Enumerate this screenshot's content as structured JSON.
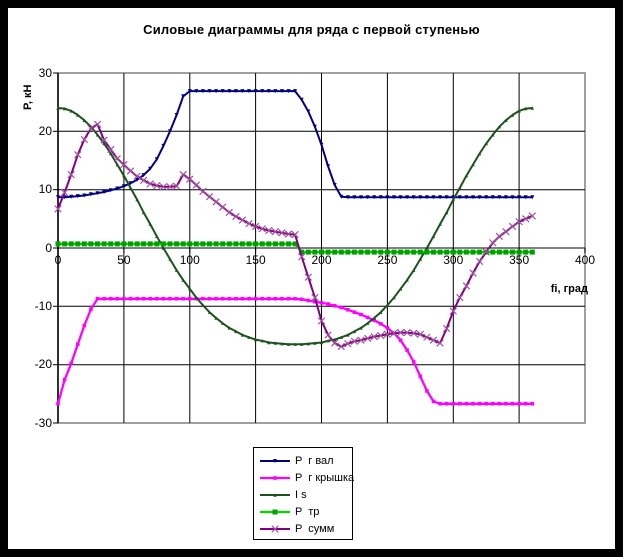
{
  "page": {
    "background": "#FFFFFF",
    "frame_color": "#000000",
    "plot_border_color": "#808080",
    "gridline_color": "#000000"
  },
  "chart_data": {
    "type": "line",
    "title": "Силовые диаграммы для ряда с первой ступенью",
    "xlabel": "fi, град",
    "ylabel": "P, кН",
    "xlim": [
      0,
      400
    ],
    "ylim": [
      -30,
      30
    ],
    "x_ticks": [
      0,
      50,
      100,
      150,
      200,
      250,
      300,
      350,
      400
    ],
    "y_ticks": [
      30,
      20,
      10,
      0,
      -10,
      -20,
      -30
    ],
    "grid": true,
    "legend_position": "bottom-center",
    "x": [
      0,
      5,
      10,
      15,
      20,
      25,
      30,
      35,
      40,
      45,
      50,
      55,
      60,
      65,
      70,
      75,
      80,
      85,
      90,
      95,
      100,
      105,
      110,
      115,
      120,
      125,
      130,
      135,
      140,
      145,
      150,
      155,
      160,
      165,
      170,
      175,
      180,
      185,
      190,
      195,
      200,
      205,
      210,
      215,
      220,
      225,
      230,
      235,
      240,
      245,
      250,
      255,
      260,
      265,
      270,
      275,
      280,
      285,
      290,
      295,
      300,
      305,
      310,
      315,
      320,
      325,
      330,
      335,
      340,
      345,
      350,
      355,
      360
    ],
    "series": [
      {
        "name": "P  г вал",
        "color": "#000080",
        "marker": "triangle-down",
        "marker_color": "#000080",
        "marker_size": 4,
        "line_width": 2,
        "values": [
          8.7,
          8.7,
          8.8,
          8.9,
          9.0,
          9.2,
          9.4,
          9.6,
          9.9,
          10.2,
          10.6,
          11.1,
          11.7,
          12.5,
          13.6,
          15.2,
          17.5,
          20.0,
          22.8,
          26.0,
          26.9,
          26.9,
          26.9,
          26.9,
          26.9,
          26.9,
          26.9,
          26.9,
          26.9,
          26.9,
          26.9,
          26.9,
          26.9,
          26.9,
          26.9,
          26.9,
          26.9,
          25.4,
          23.4,
          20.8,
          17.7,
          14.0,
          10.8,
          8.8,
          8.7,
          8.7,
          8.7,
          8.7,
          8.7,
          8.7,
          8.7,
          8.7,
          8.7,
          8.7,
          8.7,
          8.7,
          8.7,
          8.7,
          8.7,
          8.7,
          8.7,
          8.7,
          8.7,
          8.7,
          8.7,
          8.7,
          8.7,
          8.7,
          8.7,
          8.7,
          8.7,
          8.7,
          8.7
        ]
      },
      {
        "name": "P  г крышка",
        "color": "#FF00FF",
        "marker": "square",
        "marker_color": "#FF00FF",
        "marker_size": 3.6,
        "line_width": 2.3,
        "values": [
          -26.7,
          -22.6,
          -19.8,
          -16.5,
          -13.3,
          -10.5,
          -8.7,
          -8.7,
          -8.7,
          -8.7,
          -8.7,
          -8.7,
          -8.7,
          -8.7,
          -8.7,
          -8.7,
          -8.7,
          -8.7,
          -8.7,
          -8.7,
          -8.7,
          -8.7,
          -8.7,
          -8.7,
          -8.7,
          -8.7,
          -8.7,
          -8.7,
          -8.7,
          -8.7,
          -8.7,
          -8.7,
          -8.7,
          -8.7,
          -8.7,
          -8.7,
          -8.7,
          -8.8,
          -9.0,
          -9.2,
          -9.4,
          -9.6,
          -9.9,
          -10.2,
          -10.6,
          -11.0,
          -11.4,
          -11.9,
          -12.4,
          -13.0,
          -13.7,
          -14.6,
          -15.8,
          -17.5,
          -19.5,
          -22.0,
          -24.5,
          -26.3,
          -26.7,
          -26.7,
          -26.7,
          -26.7,
          -26.7,
          -26.7,
          -26.7,
          -26.7,
          -26.7,
          -26.7,
          -26.7,
          -26.7,
          -26.7,
          -26.7,
          -26.7
        ]
      },
      {
        "name": "I s",
        "color": "#1C521C",
        "marker": "triangle-up",
        "marker_color": "#1C521C",
        "marker_size": 3.4,
        "line_width": 2,
        "values": [
          24.0,
          23.9,
          23.5,
          22.8,
          21.9,
          20.8,
          19.4,
          17.9,
          16.2,
          14.3,
          12.4,
          10.3,
          8.3,
          6.1,
          4.1,
          2.0,
          0.0,
          -1.9,
          -3.8,
          -5.5,
          -7.0,
          -8.5,
          -9.8,
          -11.0,
          -12.0,
          -12.9,
          -13.7,
          -14.3,
          -14.9,
          -15.3,
          -15.7,
          -15.9,
          -16.2,
          -16.3,
          -16.4,
          -16.5,
          -16.5,
          -16.5,
          -16.4,
          -16.3,
          -16.2,
          -15.9,
          -15.7,
          -15.3,
          -14.9,
          -14.3,
          -13.7,
          -12.9,
          -12.0,
          -11.0,
          -9.8,
          -8.5,
          -7.0,
          -5.5,
          -3.8,
          -1.9,
          0.0,
          2.0,
          4.1,
          6.1,
          8.3,
          10.3,
          12.4,
          14.3,
          16.2,
          17.9,
          19.4,
          20.8,
          21.9,
          22.8,
          23.5,
          23.9,
          24.0
        ]
      },
      {
        "name": "P  тр",
        "color": "#00D800",
        "marker": "square",
        "marker_color": "#00A000",
        "marker_size": 5,
        "line_width": 2.3,
        "values": [
          0.7,
          0.7,
          0.7,
          0.7,
          0.7,
          0.7,
          0.7,
          0.7,
          0.7,
          0.7,
          0.7,
          0.7,
          0.7,
          0.7,
          0.7,
          0.7,
          0.7,
          0.7,
          0.7,
          0.7,
          0.7,
          0.7,
          0.7,
          0.7,
          0.7,
          0.7,
          0.7,
          0.7,
          0.7,
          0.7,
          0.7,
          0.7,
          0.7,
          0.7,
          0.7,
          0.7,
          0.7,
          -0.7,
          -0.7,
          -0.7,
          -0.7,
          -0.7,
          -0.7,
          -0.7,
          -0.7,
          -0.7,
          -0.7,
          -0.7,
          -0.7,
          -0.7,
          -0.7,
          -0.7,
          -0.7,
          -0.7,
          -0.7,
          -0.7,
          -0.7,
          -0.7,
          -0.7,
          -0.7,
          -0.7,
          -0.7,
          -0.7,
          -0.7,
          -0.7,
          -0.7,
          -0.7,
          -0.7,
          -0.7,
          -0.7,
          -0.7,
          -0.7,
          -0.7
        ]
      },
      {
        "name": "P  сумм",
        "color": "#800080",
        "marker": "x",
        "marker_color": "#A050A0",
        "marker_size": 6.5,
        "line_width": 2,
        "values": [
          6.7,
          9.5,
          12.6,
          16.0,
          18.6,
          20.5,
          21.2,
          18.5,
          16.9,
          15.3,
          14.3,
          13.2,
          12.3,
          11.6,
          11.0,
          10.7,
          10.5,
          10.5,
          10.6,
          12.6,
          11.8,
          10.8,
          9.7,
          8.8,
          7.9,
          7.0,
          6.1,
          5.4,
          4.8,
          4.2,
          3.7,
          3.3,
          3.0,
          2.8,
          2.6,
          2.4,
          2.3,
          -1.5,
          -5.0,
          -8.5,
          -12.5,
          -14.9,
          -16.3,
          -16.9,
          -16.4,
          -16.0,
          -15.8,
          -15.5,
          -15.2,
          -15.0,
          -14.8,
          -14.6,
          -14.5,
          -14.5,
          -14.6,
          -14.8,
          -15.3,
          -15.8,
          -16.3,
          -13.8,
          -10.8,
          -8.5,
          -6.5,
          -4.3,
          -2.3,
          -0.7,
          0.9,
          2.0,
          2.8,
          3.7,
          4.5,
          5.0,
          5.5
        ]
      }
    ]
  }
}
